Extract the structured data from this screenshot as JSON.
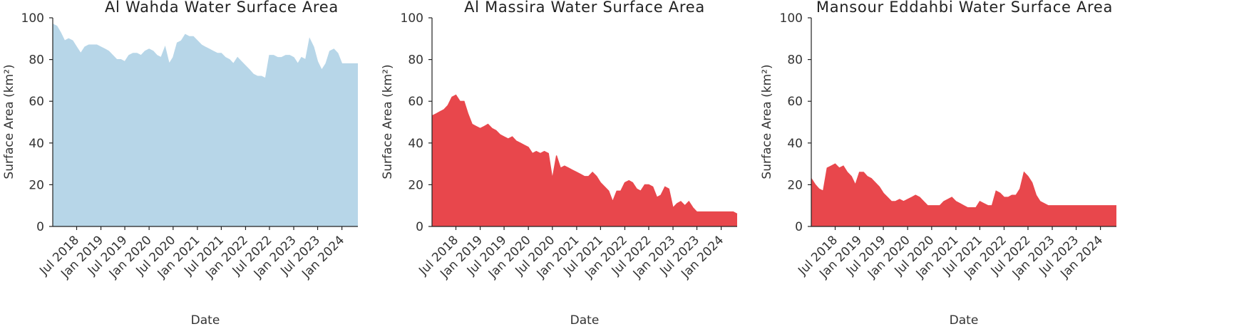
{
  "chart_data": [
    {
      "type": "area",
      "title": "Al  Wahda Water Surface Area",
      "xlabel": "Date",
      "ylabel": "Surface Area (km²)",
      "ylim": [
        0,
        100
      ],
      "yticks": [
        0,
        20,
        40,
        60,
        80,
        100
      ],
      "xticks": [
        "Jul 2018",
        "Jan 2019",
        "Jul 2019",
        "Jan 2020",
        "Jul 2020",
        "Jan 2021",
        "Jul 2021",
        "Jan 2022",
        "Jul 2022",
        "Jan 2023",
        "Jul 2023",
        "Jan 2024"
      ],
      "grid": false,
      "series": [
        {
          "color": "#b7d6e8",
          "x": [
            "2018-01-01",
            "2018-02-01",
            "2018-03-01",
            "2018-04-01",
            "2018-05-01",
            "2018-06-01",
            "2018-07-01",
            "2018-08-01",
            "2018-09-01",
            "2018-10-01",
            "2018-11-01",
            "2018-12-01",
            "2019-01-01",
            "2019-02-01",
            "2019-03-01",
            "2019-04-01",
            "2019-05-01",
            "2019-06-01",
            "2019-07-01",
            "2019-08-01",
            "2019-09-01",
            "2019-10-01",
            "2019-11-01",
            "2019-12-01",
            "2020-01-01",
            "2020-02-01",
            "2020-03-01",
            "2020-04-01",
            "2020-05-01",
            "2020-06-01",
            "2020-07-01",
            "2020-08-01",
            "2020-09-01",
            "2020-10-01",
            "2020-11-01",
            "2020-12-01",
            "2021-01-01",
            "2021-02-01",
            "2021-03-01",
            "2021-04-01",
            "2021-05-01",
            "2021-06-01",
            "2021-07-01",
            "2021-08-01",
            "2021-09-01",
            "2021-10-01",
            "2021-11-01",
            "2021-12-01",
            "2022-01-01",
            "2022-02-01",
            "2022-03-01",
            "2022-04-01",
            "2022-05-01",
            "2022-06-01",
            "2022-07-01",
            "2022-08-01",
            "2022-09-01",
            "2022-10-01",
            "2022-11-01",
            "2022-12-01",
            "2023-01-01",
            "2023-02-01",
            "2023-03-01",
            "2023-04-01",
            "2023-05-01",
            "2023-06-01",
            "2023-07-01",
            "2023-08-01",
            "2023-09-01",
            "2023-10-01",
            "2023-11-01",
            "2023-12-01",
            "2024-01-01",
            "2024-02-01",
            "2024-03-01",
            "2024-04-01",
            "2024-05-01"
          ],
          "values": [
            97,
            96,
            93,
            89,
            90,
            89,
            86,
            83,
            86,
            87,
            87,
            87,
            86,
            85,
            84,
            82,
            80,
            80,
            79,
            82,
            83,
            83,
            82,
            84,
            85,
            84,
            82,
            81,
            86,
            78,
            81,
            88,
            89,
            92,
            91,
            91,
            89,
            87,
            86,
            85,
            84,
            83,
            83,
            81,
            80,
            78,
            81,
            79,
            77,
            75,
            73,
            72,
            72,
            71,
            82,
            82,
            81,
            81,
            82,
            82,
            81,
            78,
            81,
            80,
            90,
            86,
            79,
            75,
            78,
            84,
            85,
            83,
            78,
            78,
            78,
            78,
            78
          ]
        }
      ]
    },
    {
      "type": "area",
      "title": "Al  Massira Water Surface Area",
      "xlabel": "Date",
      "ylabel": "Surface Area (km²)",
      "ylim": [
        0,
        100
      ],
      "yticks": [
        0,
        20,
        40,
        60,
        80,
        100
      ],
      "xticks": [
        "Jul 2018",
        "Jan 2019",
        "Jul 2019",
        "Jan 2020",
        "Jul 2020",
        "Jan 2021",
        "Jul 2021",
        "Jan 2022",
        "Jul 2022",
        "Jan 2023",
        "Jul 2023",
        "Jan 2024"
      ],
      "grid": false,
      "series": [
        {
          "color": "#e8474c",
          "x": [
            "2018-01-01",
            "2018-02-01",
            "2018-03-01",
            "2018-04-01",
            "2018-05-01",
            "2018-06-01",
            "2018-07-01",
            "2018-08-01",
            "2018-09-01",
            "2018-10-01",
            "2018-11-01",
            "2018-12-01",
            "2019-01-01",
            "2019-02-01",
            "2019-03-01",
            "2019-04-01",
            "2019-05-01",
            "2019-06-01",
            "2019-07-01",
            "2019-08-01",
            "2019-09-01",
            "2019-10-01",
            "2019-11-01",
            "2019-12-01",
            "2020-01-01",
            "2020-02-01",
            "2020-03-01",
            "2020-04-01",
            "2020-05-01",
            "2020-06-01",
            "2020-07-01",
            "2020-08-01",
            "2020-09-01",
            "2020-10-01",
            "2020-11-01",
            "2020-12-01",
            "2021-01-01",
            "2021-02-01",
            "2021-03-01",
            "2021-04-01",
            "2021-05-01",
            "2021-06-01",
            "2021-07-01",
            "2021-08-01",
            "2021-09-01",
            "2021-10-01",
            "2021-11-01",
            "2021-12-01",
            "2022-01-01",
            "2022-02-01",
            "2022-03-01",
            "2022-04-01",
            "2022-05-01",
            "2022-06-01",
            "2022-07-01",
            "2022-08-01",
            "2022-09-01",
            "2022-10-01",
            "2022-11-01",
            "2022-12-01",
            "2023-01-01",
            "2023-02-01",
            "2023-03-01",
            "2023-04-01",
            "2023-05-01",
            "2023-06-01",
            "2023-07-01",
            "2023-08-01",
            "2023-09-01",
            "2023-10-01",
            "2023-11-01",
            "2023-12-01",
            "2024-01-01",
            "2024-02-01",
            "2024-03-01",
            "2024-04-01",
            "2024-05-01"
          ],
          "values": [
            53,
            54,
            55,
            56,
            58,
            62,
            63,
            60,
            60,
            54,
            49,
            48,
            47,
            48,
            49,
            47,
            46,
            44,
            43,
            42,
            43,
            41,
            40,
            39,
            38,
            35,
            36,
            35,
            36,
            35,
            23,
            34,
            28,
            29,
            28,
            27,
            26,
            25,
            24,
            24,
            26,
            24,
            21,
            19,
            17,
            12,
            17,
            17,
            21,
            22,
            21,
            18,
            17,
            20,
            20,
            19,
            14,
            15,
            19,
            18,
            9,
            11,
            12,
            10,
            12,
            9,
            7,
            7,
            7,
            7,
            7,
            7,
            7,
            7,
            7,
            7,
            6
          ]
        }
      ]
    },
    {
      "type": "area",
      "title": "Mansour Eddahbi Water Surface Area",
      "xlabel": "Date",
      "ylabel": "Surface Area (km²)",
      "ylim": [
        0,
        100
      ],
      "yticks": [
        0,
        20,
        40,
        60,
        80,
        100
      ],
      "xticks": [
        "Jul 2018",
        "Jan 2019",
        "Jul 2019",
        "Jan 2020",
        "Jul 2020",
        "Jan 2021",
        "Jul 2021",
        "Jan 2022",
        "Jul 2022",
        "Jan 2023",
        "Jul 2023",
        "Jan 2024"
      ],
      "grid": false,
      "series": [
        {
          "color": "#e8474c",
          "x": [
            "2018-01-01",
            "2018-02-01",
            "2018-03-01",
            "2018-04-01",
            "2018-05-01",
            "2018-06-01",
            "2018-07-01",
            "2018-08-01",
            "2018-09-01",
            "2018-10-01",
            "2018-11-01",
            "2018-12-01",
            "2019-01-01",
            "2019-02-01",
            "2019-03-01",
            "2019-04-01",
            "2019-05-01",
            "2019-06-01",
            "2019-07-01",
            "2019-08-01",
            "2019-09-01",
            "2019-10-01",
            "2019-11-01",
            "2019-12-01",
            "2020-01-01",
            "2020-02-01",
            "2020-03-01",
            "2020-04-01",
            "2020-05-01",
            "2020-06-01",
            "2020-07-01",
            "2020-08-01",
            "2020-09-01",
            "2020-10-01",
            "2020-11-01",
            "2020-12-01",
            "2021-01-01",
            "2021-02-01",
            "2021-03-01",
            "2021-04-01",
            "2021-05-01",
            "2021-06-01",
            "2021-07-01",
            "2021-08-01",
            "2021-09-01",
            "2021-10-01",
            "2021-11-01",
            "2021-12-01",
            "2022-01-01",
            "2022-02-01",
            "2022-03-01",
            "2022-04-01",
            "2022-05-01",
            "2022-06-01",
            "2022-07-01",
            "2022-08-01",
            "2022-09-01",
            "2022-10-01",
            "2022-11-01",
            "2022-12-01",
            "2023-01-01",
            "2023-02-01",
            "2023-03-01",
            "2023-04-01",
            "2023-05-01",
            "2023-06-01",
            "2023-07-01",
            "2023-08-01",
            "2023-09-01",
            "2023-10-01",
            "2023-11-01",
            "2023-12-01",
            "2024-01-01",
            "2024-02-01",
            "2024-03-01",
            "2024-04-01",
            "2024-05-01"
          ],
          "values": [
            23,
            20,
            18,
            17,
            28,
            29,
            30,
            28,
            29,
            26,
            24,
            20,
            26,
            26,
            24,
            23,
            21,
            19,
            16,
            14,
            12,
            12,
            13,
            12,
            13,
            14,
            15,
            14,
            12,
            10,
            10,
            10,
            10,
            12,
            13,
            14,
            12,
            11,
            10,
            9,
            9,
            9,
            12,
            11,
            10,
            10,
            17,
            16,
            14,
            14,
            15,
            15,
            18,
            26,
            24,
            21,
            15,
            12,
            11,
            10,
            10,
            10,
            10,
            10,
            10,
            10,
            10,
            10,
            10,
            10,
            10,
            10,
            10,
            10,
            10,
            10,
            10
          ]
        }
      ]
    }
  ]
}
